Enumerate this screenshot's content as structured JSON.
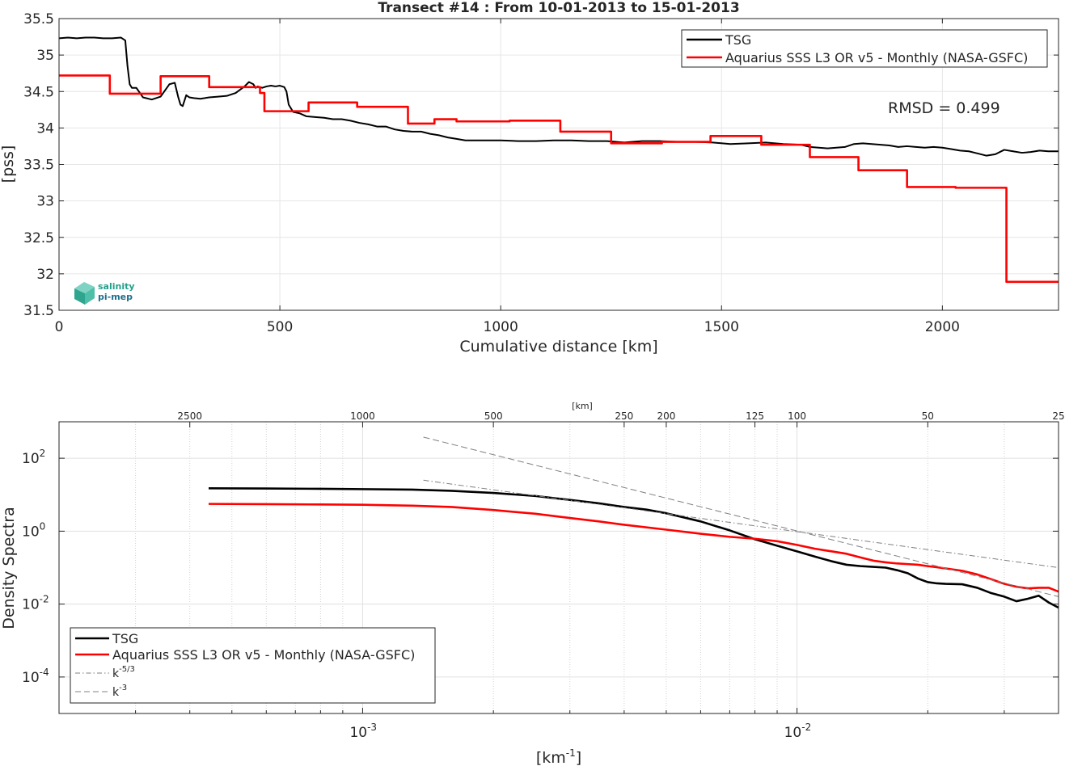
{
  "chart_data": [
    {
      "type": "line",
      "title": "Transect #14 : From 10-01-2013 to 15-01-2013",
      "xlabel": "Cumulative distance [km]",
      "ylabel": "[pss]",
      "xlim": [
        0,
        2263
      ],
      "ylim": [
        31.5,
        35.5
      ],
      "x_ticks": [
        0,
        500,
        1000,
        1500,
        2000
      ],
      "x_tick_labels": [
        "0",
        "500",
        "1000",
        "1500",
        "2000"
      ],
      "y_ticks": [
        31.5,
        32,
        32.5,
        33,
        33.5,
        34,
        34.5,
        35,
        35.5
      ],
      "y_tick_labels": [
        "31.5",
        "32",
        "32.5",
        "33",
        "33.5",
        "34",
        "34.5",
        "35",
        "35.5"
      ],
      "grid": true,
      "legend_position": "top-right",
      "annotation": "RMSD = 0.499",
      "logo": {
        "line1": "salinity",
        "line2": "pi-mep"
      },
      "series": [
        {
          "name": "TSG",
          "color": "#000000",
          "style": "line",
          "x": [
            0,
            20,
            40,
            60,
            80,
            100,
            120,
            140,
            150,
            155,
            160,
            165,
            175,
            190,
            210,
            230,
            250,
            262,
            270,
            275,
            280,
            288,
            295,
            305,
            320,
            340,
            360,
            380,
            400,
            420,
            430,
            440,
            445,
            450,
            460,
            470,
            480,
            490,
            500,
            510,
            515,
            520,
            530,
            545,
            560,
            580,
            600,
            620,
            640,
            660,
            680,
            700,
            720,
            740,
            760,
            780,
            800,
            820,
            840,
            860,
            880,
            900,
            920,
            960,
            1000,
            1040,
            1080,
            1120,
            1160,
            1200,
            1240,
            1280,
            1320,
            1360,
            1400,
            1440,
            1480,
            1520,
            1560,
            1600,
            1640,
            1680,
            1700,
            1720,
            1740,
            1760,
            1780,
            1800,
            1820,
            1840,
            1860,
            1880,
            1900,
            1920,
            1940,
            1960,
            1980,
            2000,
            2020,
            2040,
            2060,
            2080,
            2100,
            2120,
            2140,
            2160,
            2180,
            2200,
            2220,
            2240,
            2263
          ],
          "y": [
            35.23,
            35.24,
            35.23,
            35.24,
            35.24,
            35.23,
            35.23,
            35.24,
            35.2,
            34.85,
            34.6,
            34.55,
            34.55,
            34.42,
            34.39,
            34.43,
            34.6,
            34.62,
            34.42,
            34.32,
            34.3,
            34.45,
            34.42,
            34.41,
            34.4,
            34.42,
            34.43,
            34.44,
            34.48,
            34.57,
            34.63,
            34.6,
            34.55,
            34.57,
            34.55,
            34.57,
            34.58,
            34.57,
            34.58,
            34.56,
            34.5,
            34.32,
            34.22,
            34.2,
            34.16,
            34.15,
            34.14,
            34.12,
            34.12,
            34.1,
            34.07,
            34.05,
            34.02,
            34.02,
            33.98,
            33.96,
            33.95,
            33.95,
            33.92,
            33.9,
            33.87,
            33.85,
            33.83,
            33.83,
            33.83,
            33.82,
            33.82,
            33.83,
            33.83,
            33.82,
            33.82,
            33.8,
            33.82,
            33.82,
            33.81,
            33.81,
            33.8,
            33.78,
            33.79,
            33.8,
            33.78,
            33.77,
            33.74,
            33.73,
            33.72,
            33.73,
            33.74,
            33.78,
            33.79,
            33.78,
            33.77,
            33.76,
            33.74,
            33.75,
            33.74,
            33.73,
            33.74,
            33.73,
            33.71,
            33.69,
            33.68,
            33.65,
            33.62,
            33.64,
            33.7,
            33.68,
            33.66,
            33.67,
            33.69,
            33.68,
            33.68
          ]
        },
        {
          "name": "Aquarius SSS L3 OR v5 - Monthly (NASA-GSFC)",
          "color": "#ff0000",
          "style": "step",
          "x": [
            0,
            115,
            230,
            340,
            455,
            465,
            565,
            675,
            790,
            850,
            900,
            1020,
            1135,
            1250,
            1365,
            1475,
            1590,
            1700,
            1810,
            1920,
            2030,
            2145,
            2263
          ],
          "y": [
            34.72,
            34.47,
            34.71,
            34.56,
            34.48,
            34.23,
            34.35,
            34.29,
            34.06,
            34.12,
            34.09,
            34.1,
            33.95,
            33.79,
            33.81,
            33.89,
            33.77,
            33.6,
            33.42,
            33.19,
            33.18,
            31.89,
            31.89
          ]
        }
      ]
    },
    {
      "type": "line",
      "title": "",
      "xlabel": "[km-1]",
      "ylabel": "Density Spectra",
      "top_axis_label": "[km]",
      "x_scale": "log",
      "y_scale": "log",
      "xlim": [
        0.0002,
        0.04
      ],
      "ylim": [
        1e-05,
        1000
      ],
      "x_tick_labels": [
        "10-3",
        "10-2"
      ],
      "y_tick_labels": [
        "10-4",
        "10-2",
        "100",
        "102"
      ],
      "top_ticks_km": [
        2500,
        1000,
        500,
        250,
        200,
        125,
        100,
        50,
        25
      ],
      "top_tick_labels": [
        "2500",
        "1000",
        "500",
        "250",
        "200",
        "125",
        "100",
        "50",
        "25"
      ],
      "grid": true,
      "legend_position": "bottom-left",
      "series": [
        {
          "name": "TSG",
          "color": "#000000",
          "style": "solid",
          "x": [
            0.000442,
            0.0006,
            0.0008,
            0.001,
            0.0013,
            0.0016,
            0.002,
            0.0025,
            0.003,
            0.0035,
            0.004,
            0.0045,
            0.005,
            0.006,
            0.007,
            0.008,
            0.009,
            0.01,
            0.011,
            0.012,
            0.013,
            0.014,
            0.015,
            0.016,
            0.017,
            0.018,
            0.019,
            0.02,
            0.021,
            0.022,
            0.024,
            0.026,
            0.028,
            0.03,
            0.032,
            0.034,
            0.036,
            0.038,
            0.04
          ],
          "y": [
            15,
            14.8,
            14.5,
            14.2,
            13.8,
            12.8,
            11.2,
            9.2,
            7.2,
            5.8,
            4.6,
            3.9,
            3.1,
            1.85,
            1.05,
            0.6,
            0.4,
            0.28,
            0.2,
            0.15,
            0.12,
            0.11,
            0.105,
            0.1,
            0.085,
            0.07,
            0.05,
            0.04,
            0.037,
            0.036,
            0.035,
            0.028,
            0.02,
            0.016,
            0.012,
            0.014,
            0.017,
            0.011,
            0.008
          ]
        },
        {
          "name": "Aquarius SSS L3 OR v5 - Monthly (NASA-GSFC)",
          "color": "#ff0000",
          "style": "solid",
          "x": [
            0.000442,
            0.0006,
            0.0008,
            0.001,
            0.0013,
            0.0016,
            0.002,
            0.0025,
            0.003,
            0.0035,
            0.004,
            0.005,
            0.006,
            0.007,
            0.008,
            0.009,
            0.01,
            0.011,
            0.012,
            0.013,
            0.014,
            0.015,
            0.016,
            0.017,
            0.018,
            0.019,
            0.02,
            0.022,
            0.024,
            0.026,
            0.028,
            0.03,
            0.032,
            0.034,
            0.036,
            0.038,
            0.04
          ],
          "y": [
            5.6,
            5.5,
            5.4,
            5.3,
            5.0,
            4.6,
            3.8,
            3.0,
            2.3,
            1.85,
            1.5,
            1.1,
            0.85,
            0.7,
            0.62,
            0.53,
            0.42,
            0.33,
            0.28,
            0.24,
            0.19,
            0.155,
            0.14,
            0.13,
            0.125,
            0.12,
            0.11,
            0.095,
            0.082,
            0.065,
            0.048,
            0.036,
            0.03,
            0.027,
            0.028,
            0.028,
            0.022
          ]
        },
        {
          "name": "k-5/3",
          "color": "#808080",
          "style": "dashdot",
          "x": [
            0.00138,
            0.04
          ],
          "y": [
            25,
            0.1
          ]
        },
        {
          "name": "k-3",
          "color": "#808080",
          "style": "dashed",
          "x": [
            0.00138,
            0.04
          ],
          "y": [
            380,
            0.016
          ]
        }
      ],
      "legend_entries": [
        {
          "label": "TSG"
        },
        {
          "label": "Aquarius SSS L3 OR v5 - Monthly (NASA-GSFC)"
        },
        {
          "label_base": "k",
          "label_sup": "-5/3"
        },
        {
          "label_base": "k",
          "label_sup": "-3"
        }
      ]
    }
  ]
}
